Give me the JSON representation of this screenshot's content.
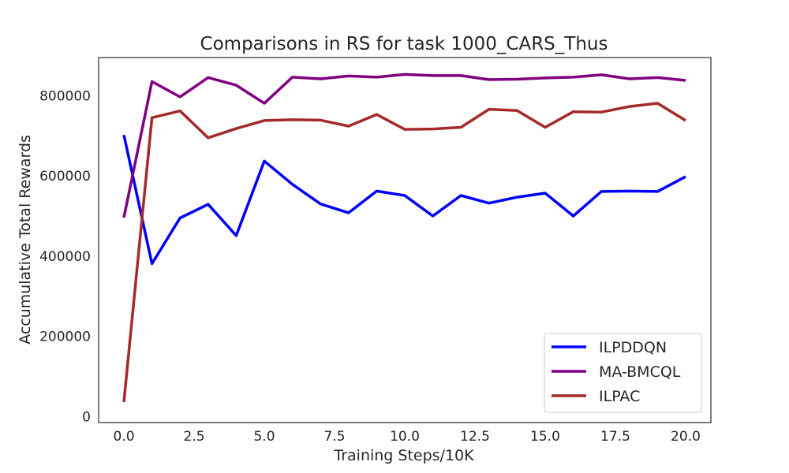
{
  "chart_data": {
    "type": "line",
    "title": "Comparisons in RS for task 1000_CARS_Thus",
    "xlabel": "Training Steps/10K",
    "ylabel": "Accumulative Total Rewards",
    "xlim": [
      -0.9,
      20.9
    ],
    "ylim": [
      -15000,
      895000
    ],
    "xticks": [
      0.0,
      2.5,
      5.0,
      7.5,
      10.0,
      12.5,
      15.0,
      17.5,
      20.0
    ],
    "xtick_labels": [
      "0.0",
      "2.5",
      "5.0",
      "7.5",
      "10.0",
      "12.5",
      "15.0",
      "17.5",
      "20.0"
    ],
    "yticks": [
      0,
      200000,
      400000,
      600000,
      800000
    ],
    "ytick_labels": [
      "0",
      "200000",
      "400000",
      "600000",
      "800000"
    ],
    "grid": false,
    "legend_position": "lower-right",
    "x": [
      0,
      1,
      2,
      3,
      4,
      5,
      6,
      7,
      8,
      9,
      10,
      11,
      12,
      13,
      14,
      15,
      16,
      17,
      18,
      19,
      20
    ],
    "series": [
      {
        "name": "ILPDDQN",
        "color": "#0000ff",
        "values": [
          702000,
          381000,
          495000,
          529000,
          451000,
          637000,
          579000,
          530000,
          508000,
          562000,
          551000,
          500000,
          551000,
          532000,
          547000,
          557000,
          500000,
          561000,
          562000,
          561000,
          598000
        ]
      },
      {
        "name": "MA-BMCQL",
        "color": "#800080",
        "values": [
          496000,
          835000,
          797000,
          845000,
          826000,
          781000,
          846000,
          842000,
          849000,
          846000,
          853000,
          850000,
          850000,
          840000,
          841000,
          844000,
          846000,
          852000,
          842000,
          845000,
          838000
        ]
      },
      {
        "name": "ILPAC",
        "color": "#a52a2a",
        "values": [
          36000,
          745000,
          762000,
          695000,
          718000,
          738000,
          740000,
          739000,
          724000,
          753000,
          716000,
          717000,
          721000,
          766000,
          763000,
          721000,
          760000,
          759000,
          773000,
          781000,
          738000
        ]
      }
    ]
  }
}
